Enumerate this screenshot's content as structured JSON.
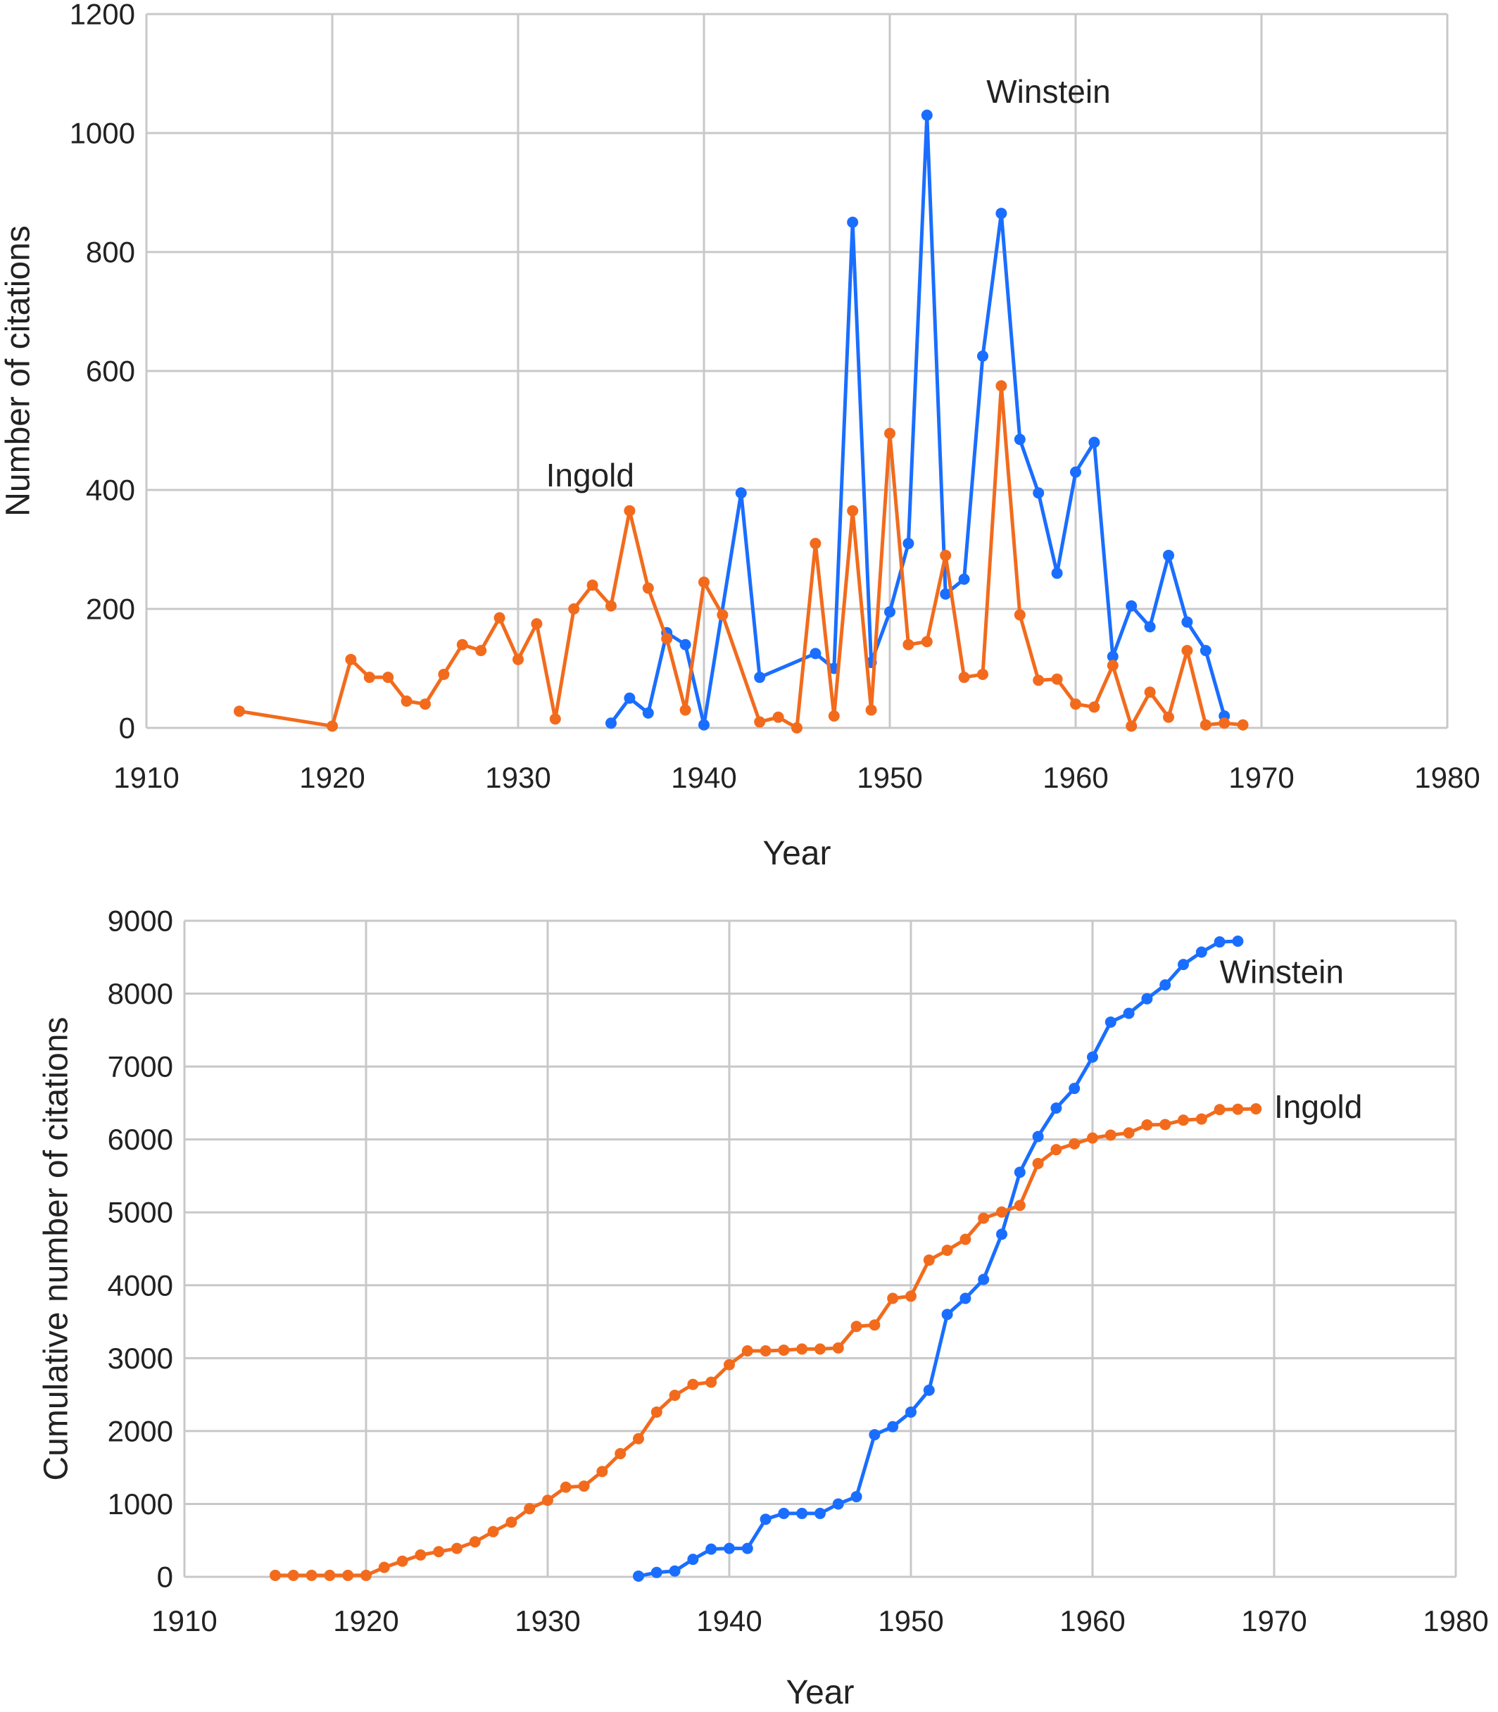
{
  "chart_data": [
    {
      "type": "line",
      "xlabel": "Year",
      "ylabel": "Number of citations",
      "xlim": [
        1910,
        1980
      ],
      "ylim": [
        0,
        1200
      ],
      "xticks": [
        1910,
        1920,
        1930,
        1940,
        1950,
        1960,
        1970,
        1980
      ],
      "yticks": [
        0,
        200,
        400,
        600,
        800,
        1000,
        1200
      ],
      "grid": true,
      "legend": "none",
      "annotations": [
        {
          "text": "Winstein",
          "x": 1955.2,
          "y": 1070
        },
        {
          "text": "Ingold",
          "x": 1931.5,
          "y": 425
        }
      ],
      "series": [
        {
          "name": "Winstein",
          "color": "#1a6eff",
          "points": [
            [
              1935,
              8
            ],
            [
              1936,
              50
            ],
            [
              1937,
              25
            ],
            [
              1938,
              160
            ],
            [
              1939,
              140
            ],
            [
              1940,
              5
            ],
            [
              1942,
              395
            ],
            [
              1943,
              85
            ],
            [
              1946,
              125
            ],
            [
              1947,
              100
            ],
            [
              1948,
              850
            ],
            [
              1949,
              110
            ],
            [
              1950,
              195
            ],
            [
              1951,
              310
            ],
            [
              1952,
              1030
            ],
            [
              1953,
              225
            ],
            [
              1954,
              250
            ],
            [
              1955,
              625
            ],
            [
              1956,
              865
            ],
            [
              1957,
              485
            ],
            [
              1958,
              395
            ],
            [
              1959,
              260
            ],
            [
              1960,
              430
            ],
            [
              1961,
              480
            ],
            [
              1962,
              120
            ],
            [
              1963,
              205
            ],
            [
              1964,
              170
            ],
            [
              1965,
              290
            ],
            [
              1966,
              178
            ],
            [
              1967,
              130
            ],
            [
              1968,
              20
            ]
          ]
        },
        {
          "name": "Ingold",
          "color": "#f26b1d",
          "points": [
            [
              1915,
              28
            ],
            [
              1920,
              3
            ],
            [
              1921,
              115
            ],
            [
              1922,
              85
            ],
            [
              1923,
              85
            ],
            [
              1924,
              45
            ],
            [
              1925,
              40
            ],
            [
              1926,
              90
            ],
            [
              1927,
              140
            ],
            [
              1928,
              130
            ],
            [
              1929,
              185
            ],
            [
              1930,
              115
            ],
            [
              1931,
              175
            ],
            [
              1932,
              15
            ],
            [
              1933,
              200
            ],
            [
              1934,
              240
            ],
            [
              1935,
              205
            ],
            [
              1936,
              365
            ],
            [
              1937,
              235
            ],
            [
              1938,
              150
            ],
            [
              1939,
              30
            ],
            [
              1940,
              245
            ],
            [
              1941,
              190
            ],
            [
              1943,
              10
            ],
            [
              1944,
              18
            ],
            [
              1945,
              0
            ],
            [
              1946,
              310
            ],
            [
              1947,
              20
            ],
            [
              1948,
              365
            ],
            [
              1949,
              30
            ],
            [
              1950,
              495
            ],
            [
              1951,
              140
            ],
            [
              1952,
              145
            ],
            [
              1953,
              290
            ],
            [
              1954,
              85
            ],
            [
              1955,
              90
            ],
            [
              1956,
              575
            ],
            [
              1957,
              190
            ],
            [
              1958,
              80
            ],
            [
              1959,
              82
            ],
            [
              1960,
              40
            ],
            [
              1961,
              35
            ],
            [
              1962,
              105
            ],
            [
              1963,
              3
            ],
            [
              1964,
              60
            ],
            [
              1965,
              18
            ],
            [
              1966,
              130
            ],
            [
              1967,
              5
            ],
            [
              1968,
              8
            ],
            [
              1969,
              5
            ]
          ]
        }
      ]
    },
    {
      "type": "line",
      "xlabel": "Year",
      "ylabel": "Cumulative number of citations",
      "xlim": [
        1910,
        1980
      ],
      "ylim": [
        0,
        9000
      ],
      "xticks": [
        1910,
        1920,
        1930,
        1940,
        1950,
        1960,
        1970,
        1980
      ],
      "yticks": [
        0,
        1000,
        2000,
        3000,
        4000,
        5000,
        6000,
        7000,
        8000,
        9000
      ],
      "grid": true,
      "legend": "none",
      "annotations": [
        {
          "text": "Winstein",
          "x": 1967,
          "y": 8300
        },
        {
          "text": "Ingold",
          "x": 1970,
          "y": 6450
        }
      ],
      "series": [
        {
          "name": "Winstein",
          "color": "#1a6eff",
          "points": [
            [
              1935,
              10
            ],
            [
              1936,
              60
            ],
            [
              1937,
              80
            ],
            [
              1938,
              240
            ],
            [
              1939,
              380
            ],
            [
              1940,
              390
            ],
            [
              1941,
              390
            ],
            [
              1942,
              790
            ],
            [
              1943,
              870
            ],
            [
              1944,
              870
            ],
            [
              1945,
              870
            ],
            [
              1946,
              1000
            ],
            [
              1947,
              1100
            ],
            [
              1948,
              1950
            ],
            [
              1949,
              2060
            ],
            [
              1950,
              2260
            ],
            [
              1951,
              2560
            ],
            [
              1952,
              3600
            ],
            [
              1953,
              3820
            ],
            [
              1954,
              4080
            ],
            [
              1955,
              4700
            ],
            [
              1956,
              5550
            ],
            [
              1957,
              6040
            ],
            [
              1958,
              6430
            ],
            [
              1959,
              6700
            ],
            [
              1960,
              7130
            ],
            [
              1961,
              7610
            ],
            [
              1962,
              7730
            ],
            [
              1963,
              7930
            ],
            [
              1964,
              8120
            ],
            [
              1965,
              8400
            ],
            [
              1966,
              8570
            ],
            [
              1967,
              8710
            ],
            [
              1968,
              8720
            ]
          ]
        },
        {
          "name": "Ingold",
          "color": "#f26b1d",
          "points": [
            [
              1915,
              20
            ],
            [
              1916,
              20
            ],
            [
              1917,
              20
            ],
            [
              1918,
              20
            ],
            [
              1919,
              20
            ],
            [
              1920,
              20
            ],
            [
              1921,
              130
            ],
            [
              1922,
              215
            ],
            [
              1923,
              300
            ],
            [
              1924,
              345
            ],
            [
              1925,
              390
            ],
            [
              1926,
              480
            ],
            [
              1927,
              620
            ],
            [
              1928,
              750
            ],
            [
              1929,
              935
            ],
            [
              1930,
              1050
            ],
            [
              1931,
              1230
            ],
            [
              1932,
              1245
            ],
            [
              1933,
              1445
            ],
            [
              1934,
              1690
            ],
            [
              1935,
              1895
            ],
            [
              1936,
              2260
            ],
            [
              1937,
              2490
            ],
            [
              1938,
              2640
            ],
            [
              1939,
              2670
            ],
            [
              1940,
              2910
            ],
            [
              1941,
              3100
            ],
            [
              1942,
              3100
            ],
            [
              1943,
              3110
            ],
            [
              1944,
              3125
            ],
            [
              1945,
              3125
            ],
            [
              1946,
              3140
            ],
            [
              1947,
              3435
            ],
            [
              1948,
              3455
            ],
            [
              1949,
              3820
            ],
            [
              1950,
              3850
            ],
            [
              1951,
              4345
            ],
            [
              1952,
              4480
            ],
            [
              1953,
              4630
            ],
            [
              1954,
              4920
            ],
            [
              1955,
              5005
            ],
            [
              1956,
              5095
            ],
            [
              1957,
              5670
            ],
            [
              1958,
              5860
            ],
            [
              1959,
              5940
            ],
            [
              1960,
              6020
            ],
            [
              1961,
              6060
            ],
            [
              1962,
              6090
            ],
            [
              1963,
              6200
            ],
            [
              1964,
              6205
            ],
            [
              1965,
              6265
            ],
            [
              1966,
              6280
            ],
            [
              1967,
              6410
            ],
            [
              1968,
              6415
            ],
            [
              1969,
              6420
            ]
          ]
        }
      ]
    }
  ]
}
